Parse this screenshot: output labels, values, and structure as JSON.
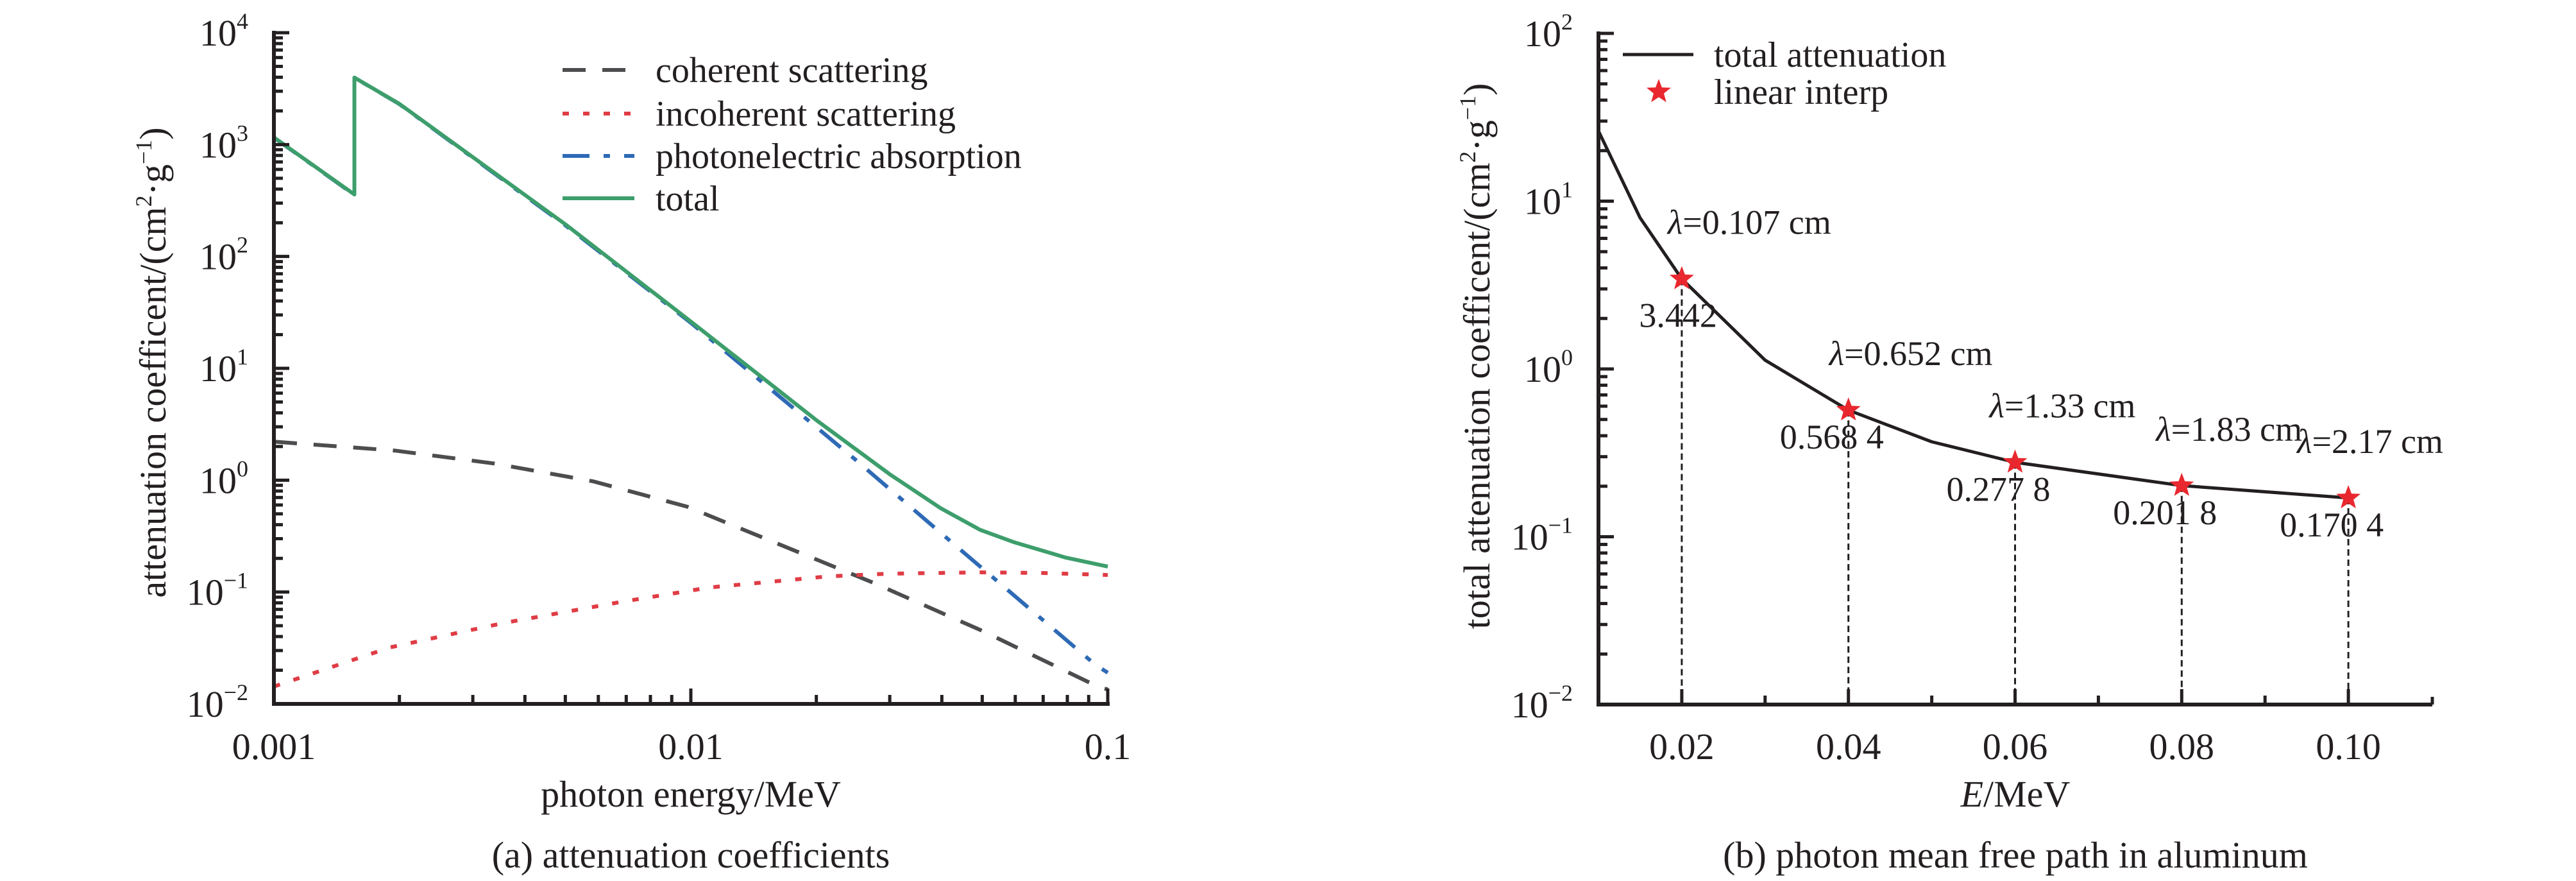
{
  "chart_data": [
    {
      "id": "a",
      "type": "line",
      "caption": "(a) attenuation coefficients",
      "title": "",
      "xlabel": "photon energy/MeV",
      "ylabel": "attenuation coefficent/(cm²·g⁻¹)",
      "ylabel_parts": {
        "base": "attenuation coefficent/(cm",
        "sup1": "2",
        "mid": "·g",
        "sup2": "−1",
        "end": ")"
      },
      "xscale": "log",
      "yscale": "log",
      "xlim": [
        0.001,
        0.1
      ],
      "ylim": [
        0.01,
        10000
      ],
      "x_ticks": [
        {
          "value": 0.001,
          "label": "0.001"
        },
        {
          "value": 0.01,
          "label": "0.01"
        },
        {
          "value": 0.1,
          "label": "0.1"
        }
      ],
      "y_ticks": [
        {
          "value": 10000,
          "base": "10",
          "exp": "4"
        },
        {
          "value": 1000,
          "base": "10",
          "exp": "3"
        },
        {
          "value": 100,
          "base": "10",
          "exp": "2"
        },
        {
          "value": 10,
          "base": "10",
          "exp": "1"
        },
        {
          "value": 1,
          "base": "10",
          "exp": "0"
        },
        {
          "value": 0.1,
          "base": "10",
          "exp": "−1"
        },
        {
          "value": 0.01,
          "base": "10",
          "exp": "−2"
        }
      ],
      "grid": false,
      "legend_position": "top-right",
      "series": [
        {
          "name": "coherent scattering",
          "color": "#4d4d4f",
          "style": "dashed",
          "x": [
            0.001,
            0.00195,
            0.00337,
            0.00581,
            0.0098,
            0.0274,
            0.05,
            0.0957,
            0.1
          ],
          "y": [
            2.21,
            1.84,
            1.41,
            0.98,
            0.58,
            0.121,
            0.045,
            0.014,
            0.0135
          ]
        },
        {
          "name": "incoherent scattering",
          "color": "#e03c45",
          "style": "dotted",
          "x": [
            0.001,
            0.0019,
            0.00357,
            0.00686,
            0.0111,
            0.0213,
            0.03,
            0.05,
            0.07,
            0.1
          ],
          "y": [
            0.0143,
            0.032,
            0.053,
            0.082,
            0.11,
            0.138,
            0.146,
            0.15,
            0.148,
            0.142
          ]
        },
        {
          "name": "photonelectric absorption",
          "color": "#2e6ab5",
          "style": "dash-dot",
          "x": [
            0.001,
            0.00156,
            0.00156,
            0.002,
            0.005,
            0.01,
            0.0249,
            0.0419,
            0.0935,
            0.1
          ],
          "y": [
            1155,
            355,
            3965,
            2300,
            190,
            25.5,
            1.51,
            0.286,
            0.0223,
            0.019
          ]
        },
        {
          "name": "total",
          "color": "#3d9e6c",
          "style": "solid",
          "x": [
            0.001,
            0.00156,
            0.00156,
            0.002,
            0.005,
            0.01,
            0.015,
            0.02,
            0.03,
            0.0398,
            0.0494,
            0.0594,
            0.0794,
            0.1
          ],
          "y": [
            1160,
            358,
            3970,
            2310,
            194,
            26.2,
            8.0,
            3.44,
            1.13,
            0.56,
            0.36,
            0.28,
            0.203,
            0.169
          ]
        }
      ]
    },
    {
      "id": "b",
      "type": "line",
      "caption": "(b) photon mean free path in aluminum",
      "title": "",
      "xlabel": "E/MeV",
      "xlabel_parts": {
        "italic": "E",
        "rest": "/MeV"
      },
      "ylabel": "total attenuation coefficent/(cm²·g⁻¹)",
      "ylabel_parts": {
        "base": "total attenuation coefficent/(cm",
        "sup1": "2",
        "mid": "·g",
        "sup2": "−1",
        "end": ")"
      },
      "xscale": "linear",
      "yscale": "log",
      "xlim": [
        0.01,
        0.11
      ],
      "ylim": [
        0.01,
        100
      ],
      "x_ticks": [
        {
          "value": 0.02,
          "label": "0.02"
        },
        {
          "value": 0.04,
          "label": "0.04"
        },
        {
          "value": 0.06,
          "label": "0.06"
        },
        {
          "value": 0.08,
          "label": "0.08"
        },
        {
          "value": 0.1,
          "label": "0.10"
        }
      ],
      "x_minor_ticks": [
        0.03,
        0.05,
        0.07,
        0.09
      ],
      "y_ticks": [
        {
          "value": 100,
          "base": "10",
          "exp": "2"
        },
        {
          "value": 10,
          "base": "10",
          "exp": "1"
        },
        {
          "value": 1,
          "base": "10",
          "exp": "0"
        },
        {
          "value": 0.1,
          "base": "10",
          "exp": "−1"
        },
        {
          "value": 0.01,
          "base": "10",
          "exp": "−2"
        }
      ],
      "grid": false,
      "legend_position": "top-left",
      "series": [
        {
          "name": "total attenuation",
          "color": "#231f20",
          "style": "solid",
          "x": [
            0.01,
            0.015,
            0.02,
            0.03,
            0.04,
            0.05,
            0.06,
            0.08,
            0.1
          ],
          "y": [
            26.2,
            7.96,
            3.442,
            1.128,
            0.5684,
            0.3681,
            0.2778,
            0.2018,
            0.1704
          ]
        },
        {
          "name": "linear interp",
          "color": "#e8282e",
          "style": "star-marker",
          "x": [
            0.02,
            0.04,
            0.06,
            0.08,
            0.1
          ],
          "y": [
            3.442,
            0.5684,
            0.2778,
            0.2018,
            0.1704
          ]
        }
      ],
      "annotations": [
        {
          "x": 0.02,
          "value_label": "3.442",
          "lambda_label": "λ=0.107 cm"
        },
        {
          "x": 0.04,
          "value_label": "0.568 4",
          "lambda_label": "λ=0.652 cm"
        },
        {
          "x": 0.06,
          "value_label": "0.277 8",
          "lambda_label": "λ=1.33 cm"
        },
        {
          "x": 0.08,
          "value_label": "0.201 8",
          "lambda_label": "λ=1.83 cm"
        },
        {
          "x": 0.1,
          "value_label": "0.170 4",
          "lambda_label": "λ=2.17 cm"
        }
      ]
    }
  ]
}
